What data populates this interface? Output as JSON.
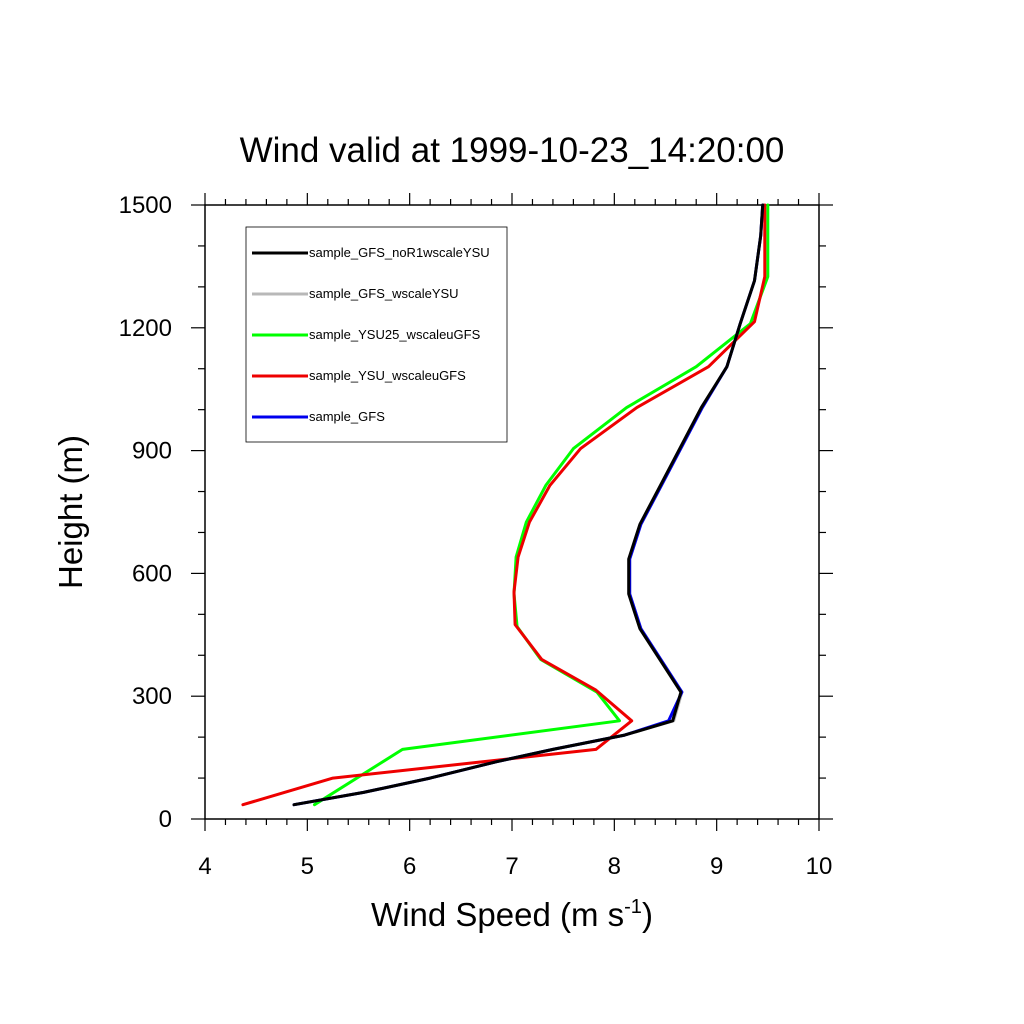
{
  "chart_data": {
    "type": "line",
    "title": "Wind valid at 1999-10-23_14:20:00",
    "xlabel": "Wind Speed (m s",
    "xlabel_sup": "-1",
    "xlabel_end": ")",
    "ylabel": "Height (m)",
    "xlim": [
      4,
      10
    ],
    "ylim": [
      0,
      1500
    ],
    "x_ticks": [
      4,
      5,
      6,
      7,
      8,
      9,
      10
    ],
    "y_ticks": [
      0,
      300,
      600,
      900,
      1200,
      1500
    ],
    "legend_position": "top-left",
    "series": [
      {
        "name": "sample_GFS_noR1wscaleYSU",
        "color": "#000000",
        "x": [
          4.87,
          5.55,
          6.2,
          6.85,
          7.4,
          8.1,
          8.57,
          8.65,
          8.25,
          8.14,
          8.14,
          8.25,
          8.45,
          8.85,
          9.1,
          9.23,
          9.37,
          9.43,
          9.45
        ],
        "y": [
          35,
          65,
          100,
          140,
          170,
          205,
          240,
          310,
          465,
          550,
          635,
          720,
          815,
          1005,
          1105,
          1210,
          1315,
          1425,
          1500
        ]
      },
      {
        "name": "sample_GFS_wscaleYSU",
        "color": "#b8b8b8",
        "x": [
          4.87,
          5.55,
          6.2,
          6.85,
          7.4,
          8.1,
          8.58,
          8.66,
          8.26,
          8.15,
          8.15,
          8.26,
          8.46,
          8.86,
          9.1,
          9.23,
          9.37,
          9.43,
          9.45
        ],
        "y": [
          35,
          65,
          100,
          140,
          170,
          205,
          240,
          310,
          465,
          550,
          635,
          720,
          815,
          1005,
          1105,
          1210,
          1315,
          1425,
          1500
        ]
      },
      {
        "name": "sample_YSU25_wscaleuGFS",
        "color": "#00ff00",
        "x": [
          5.07,
          5.93,
          8.05,
          7.83,
          7.28,
          7.05,
          7.02,
          7.04,
          7.14,
          7.33,
          7.6,
          8.12,
          8.8,
          9.33,
          9.5,
          9.5
        ],
        "y": [
          35,
          170,
          240,
          310,
          390,
          470,
          550,
          640,
          725,
          815,
          905,
          1005,
          1105,
          1210,
          1325,
          1500
        ]
      },
      {
        "name": "sample_YSU_wscaleuGFS",
        "color": "#ee0000",
        "x": [
          4.37,
          5.25,
          7.82,
          8.17,
          7.82,
          7.29,
          7.03,
          7.02,
          7.06,
          7.17,
          7.37,
          7.67,
          8.22,
          8.92,
          9.37,
          9.47,
          9.47
        ],
        "y": [
          35,
          100,
          170,
          240,
          315,
          390,
          475,
          555,
          640,
          725,
          815,
          905,
          1005,
          1105,
          1215,
          1325,
          1500
        ]
      },
      {
        "name": "sample_GFS",
        "color": "#0000ee",
        "x": [
          4.87,
          5.55,
          6.2,
          6.85,
          7.4,
          8.1,
          8.53,
          8.66,
          8.26,
          8.15,
          8.15,
          8.26,
          8.46,
          8.86,
          9.1,
          9.23,
          9.37,
          9.43,
          9.45
        ],
        "y": [
          35,
          65,
          100,
          140,
          170,
          205,
          240,
          310,
          465,
          550,
          635,
          720,
          815,
          1005,
          1105,
          1210,
          1315,
          1425,
          1500
        ]
      }
    ]
  }
}
